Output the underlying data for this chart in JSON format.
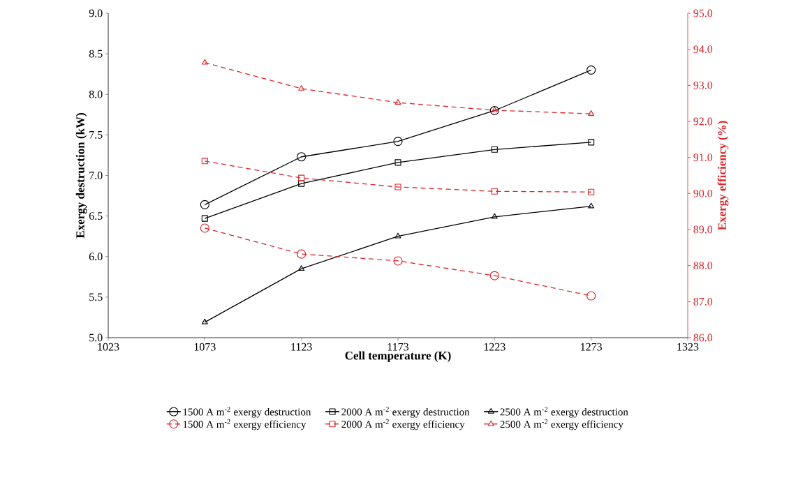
{
  "chart_data": {
    "type": "line",
    "xlabel": "Cell temperature (K)",
    "ylabel": "Exergy destruction (kW)",
    "y2label": "Exergy efficiency (%)",
    "x": [
      1073,
      1123,
      1173,
      1223,
      1273
    ],
    "xlim": [
      1023,
      1323
    ],
    "xticks": [
      1023,
      1073,
      1123,
      1173,
      1223,
      1273,
      1323
    ],
    "ylim": [
      5.0,
      9.0
    ],
    "yticks": [
      {
        "value": 5.0,
        "label": "5.0"
      },
      {
        "value": 5.5,
        "label": "5.5"
      },
      {
        "value": 6.0,
        "label": "6.0"
      },
      {
        "value": 6.5,
        "label": "6.5"
      },
      {
        "value": 7.0,
        "label": "7.0"
      },
      {
        "value": 7.5,
        "label": "7.5"
      },
      {
        "value": 8.0,
        "label": "8.0"
      },
      {
        "value": 8.5,
        "label": "8.5"
      },
      {
        "value": 9.0,
        "label": "9.0"
      }
    ],
    "y2lim": [
      86.0,
      95.0
    ],
    "y2ticks": [
      {
        "value": 86,
        "label": "86.0"
      },
      {
        "value": 87,
        "label": "87.0"
      },
      {
        "value": 88,
        "label": "88.0"
      },
      {
        "value": 89,
        "label": "89.0"
      },
      {
        "value": 90,
        "label": "90.0"
      },
      {
        "value": 91,
        "label": "91.0"
      },
      {
        "value": 92,
        "label": "92.0"
      },
      {
        "value": 93,
        "label": "93.0"
      },
      {
        "value": 94,
        "label": "94.0"
      },
      {
        "value": 95,
        "label": "95.0"
      }
    ],
    "legend": "bottom",
    "series": [
      {
        "name": "1500 A m$^{-2}$ exergy destruction",
        "color": "#000000",
        "marker": "circle",
        "line_style": "solid",
        "values": [
          6.64,
          7.23,
          7.42,
          7.8,
          8.3
        ]
      },
      {
        "name": "2000 A m$^{-2}$ exergy destruction",
        "color": "#000000",
        "marker": "square",
        "line_style": "solid",
        "values": [
          6.47,
          6.9,
          7.16,
          7.32,
          7.41
        ]
      },
      {
        "name": "2500 A m$^{-2}$ exergy destruction",
        "color": "#000000",
        "marker": "triangle",
        "line_style": "solid",
        "values": [
          5.19,
          5.85,
          6.25,
          6.49,
          6.62
        ]
      },
      {
        "name": "1500 A m$^{-2}$ exergy efficiency",
        "color": "#d9262b",
        "marker": "circle",
        "line_style": "dashed",
        "axis": "y2",
        "values": [
          89.04,
          88.32,
          88.13,
          87.72,
          87.16
        ]
      },
      {
        "name": "2000 A m$^{-2}$ exergy efficiency",
        "color": "#d9262b",
        "marker": "square",
        "line_style": "dashed",
        "axis": "y2",
        "values": [
          90.9,
          90.43,
          90.18,
          90.06,
          90.04
        ]
      },
      {
        "name": "2500 A m$^{-2}$ exergy efficiency",
        "color": "#d9262b",
        "marker": "triangle",
        "line_style": "dashed",
        "axis": "y2",
        "values": [
          93.63,
          92.91,
          92.52,
          92.31,
          92.21
        ]
      }
    ]
  }
}
